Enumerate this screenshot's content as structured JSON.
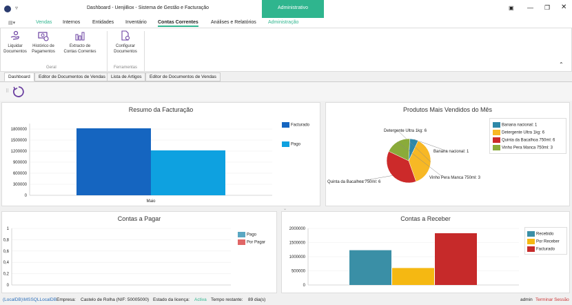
{
  "window": {
    "title": "Dashboard - UenjiBox - Sistema de Gestão e Facturação",
    "role_tag": "Administrativo"
  },
  "menu": {
    "items": [
      "Vendas",
      "Internos",
      "Entidades",
      "Inventário",
      "Contas Correntes",
      "Análises e Relatórios",
      "Administração"
    ]
  },
  "ribbon": {
    "geral": {
      "group": "Geral",
      "buttons": [
        "Liquidar\nDocumentos",
        "Histórico de\nPagamentos",
        "Extracto de\nContas Correntes"
      ]
    },
    "ferramentas": {
      "group": "Ferramentas",
      "buttons": [
        "Configurar\nDocumentos"
      ]
    }
  },
  "tabs": [
    "Dashboard",
    "Editor de Documentos de Vendas",
    "Lista de Artigos",
    "Editor de Documentos de Vendas"
  ],
  "colors": {
    "accent": "#2fb58e",
    "facturado": "#1565c0",
    "pago": "#0ea1e0",
    "red": "#cc3333"
  },
  "chart_data": [
    {
      "id": "resumo",
      "type": "bar",
      "title": "Resumo da Facturação",
      "categories": [
        "Maio"
      ],
      "series": [
        {
          "name": "Facturado",
          "values": [
            1820000
          ]
        },
        {
          "name": "Pago",
          "values": [
            1220000
          ]
        }
      ],
      "yticks": [
        "1800000",
        "1500000",
        "1200000",
        "900000",
        "600000",
        "300000",
        "0"
      ],
      "ylim": [
        0,
        1950000
      ],
      "legend": "right"
    },
    {
      "id": "produtos",
      "type": "pie",
      "title": "Produtos Mais Vendidos do Mês",
      "slices": [
        {
          "name": "Banana nacional: 1",
          "label": "Banana nacional: 1",
          "value": 1,
          "color": "#2e88a8"
        },
        {
          "name": "Detergente Ultra 1kg: 6",
          "label": "Detergente Ultra 1kg: 6",
          "value": 6,
          "color": "#f7b825"
        },
        {
          "name": "Quinta da Bacalhoa 750ml: 6",
          "label": "Quinta da Bacalhoa  750ml: 6",
          "value": 6,
          "color": "#cc2a2a"
        },
        {
          "name": "Vinho Pera Manca 750ml: 3",
          "label": "Vinho  Pera Manca  750ml: 3",
          "value": 3,
          "color": "#8aab3a"
        }
      ],
      "legend": "top-right"
    },
    {
      "id": "pagar",
      "type": "bar",
      "title": "Contas a Pagar",
      "categories": [],
      "series": [
        {
          "name": "Pago",
          "values": []
        },
        {
          "name": "Por Pagar",
          "values": []
        }
      ],
      "yticks": [
        "1",
        "0,8",
        "0,6",
        "0,4",
        "0,2",
        "0"
      ],
      "ylim": [
        0,
        1
      ],
      "legend": "right"
    },
    {
      "id": "receber",
      "type": "bar",
      "title": "Contas a Receber",
      "categories": [
        ""
      ],
      "series": [
        {
          "name": "Recebido",
          "values": [
            1230000
          ]
        },
        {
          "name": "Por Receber",
          "values": [
            600000
          ]
        },
        {
          "name": "Facturado",
          "values": [
            1830000
          ]
        }
      ],
      "yticks": [
        "2000000",
        "1500000",
        "1000000",
        "500000",
        "0"
      ],
      "ylim": [
        0,
        2000000
      ],
      "legend": "right"
    }
  ],
  "status": {
    "db": "(LocalDB)\\MSSQLLocalDB",
    "empresa_label": "Empresa:",
    "empresa": "Castelo de Rolha (NIF: 50005000)",
    "licenca_label": "Estado da licença:",
    "licenca": "Activa",
    "tempo_label": "Tempo restante:",
    "tempo": "89 dia(s)",
    "user": "admin",
    "logout": "Terminar Sessão"
  }
}
